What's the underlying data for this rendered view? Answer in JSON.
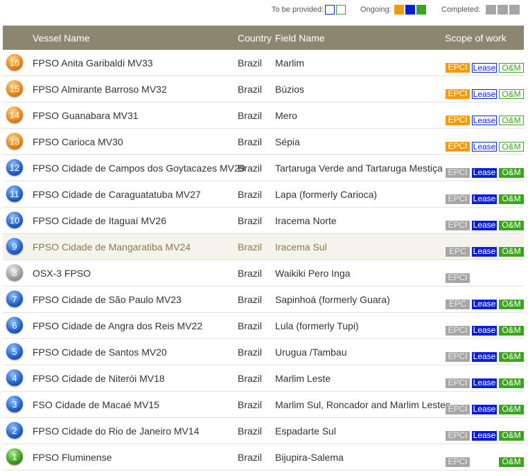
{
  "legend": {
    "to_be_provided": "To be provided:",
    "ongoing": "Ongoing:",
    "completed": "Completed:"
  },
  "table": {
    "headers": [
      "Vessel Name",
      "Country",
      "Field Name",
      "Scope of work"
    ],
    "rows": [
      {
        "number": "16",
        "icon": "orange",
        "vessel": "FPSO Anita Garibaldi MV33",
        "country": "Brazil",
        "field": "Marlim",
        "scope": {
          "epci": {
            "label": "EPCI",
            "status": "ongoing"
          },
          "lease": {
            "label": "Lease",
            "status": "to-be-provided"
          },
          "om": {
            "label": "O&M",
            "status": "to-be-provided"
          }
        }
      },
      {
        "number": "15",
        "icon": "orange",
        "vessel": "FPSO Almirante Barroso MV32",
        "country": "Brazil",
        "field": "Búzios",
        "scope": {
          "epci": {
            "label": "EPCI",
            "status": "ongoing"
          },
          "lease": {
            "label": "Lease",
            "status": "to-be-provided"
          },
          "om": {
            "label": "O&M",
            "status": "to-be-provided"
          }
        }
      },
      {
        "number": "14",
        "icon": "orange",
        "vessel": "FPSO Guanabara MV31",
        "country": "Brazil",
        "field": "Mero",
        "scope": {
          "epci": {
            "label": "EPCI",
            "status": "ongoing"
          },
          "lease": {
            "label": "Lease",
            "status": "to-be-provided"
          },
          "om": {
            "label": "O&M",
            "status": "to-be-provided"
          }
        }
      },
      {
        "number": "13",
        "icon": "orange",
        "vessel": "FPSO Carioca MV30",
        "country": "Brazil",
        "field": "Sépia",
        "scope": {
          "epci": {
            "label": "EPCI",
            "status": "ongoing"
          },
          "lease": {
            "label": "Lease",
            "status": "to-be-provided"
          },
          "om": {
            "label": "O&M",
            "status": "to-be-provided"
          }
        }
      },
      {
        "number": "12",
        "icon": "blue",
        "vessel": "FPSO Cidade de Campos dos Goytacazes MV29",
        "country": "Brazil",
        "field": "Tartaruga Verde and Tartaruga Mestiça",
        "scope": {
          "epci": {
            "label": "EPCI",
            "status": "completed"
          },
          "lease": {
            "label": "Lease",
            "status": "ongoing"
          },
          "om": {
            "label": "O&M",
            "status": "ongoing"
          }
        }
      },
      {
        "number": "11",
        "icon": "blue",
        "vessel": "FPSO Cidade de Caraguatatuba MV27",
        "country": "Brazil",
        "field": "Lapa (formerly Carioca)",
        "scope": {
          "epci": {
            "label": "EPCI",
            "status": "completed"
          },
          "lease": {
            "label": "Lease",
            "status": "ongoing"
          },
          "om": {
            "label": "O&M",
            "status": "ongoing"
          }
        }
      },
      {
        "number": "10",
        "icon": "blue",
        "vessel": "FPSO Cidade de Itaguaí MV26",
        "country": "Brazil",
        "field": "Iracema Norte",
        "scope": {
          "epci": {
            "label": "EPCI",
            "status": "completed"
          },
          "lease": {
            "label": "Lease",
            "status": "ongoing"
          },
          "om": {
            "label": "O&M",
            "status": "ongoing"
          }
        }
      },
      {
        "number": "9",
        "icon": "blue",
        "highlighted": true,
        "vessel": "FPSO Cidade de Mangaratiba MV24",
        "country": "Brazil",
        "field": "Iracema Sul",
        "scope": {
          "epci": {
            "label": "EPC",
            "status": "completed"
          },
          "lease": {
            "label": "Lease",
            "status": "ongoing"
          },
          "om": {
            "label": "O&M",
            "status": "ongoing"
          }
        }
      },
      {
        "number": "8",
        "icon": "gray",
        "vessel": "OSX-3 FPSO",
        "country": "Brazil",
        "field": "Waikiki Pero Inga",
        "scope": {
          "epci": {
            "label": "EPCI",
            "status": "completed"
          }
        }
      },
      {
        "number": "7",
        "icon": "blue",
        "vessel": "FPSO Cidade de São Paulo MV23",
        "country": "Brazil",
        "field": "Sapinhoá (formerly Guara)",
        "scope": {
          "epci": {
            "label": "EPC",
            "status": "completed"
          },
          "lease": {
            "label": "Lease",
            "status": "ongoing"
          },
          "om": {
            "label": "O&M",
            "status": "ongoing"
          }
        }
      },
      {
        "number": "6",
        "icon": "blue",
        "vessel": "FPSO Cidade de Angra dos Reis MV22",
        "country": "Brazil",
        "field": "Lula (formerly Tupi)",
        "scope": {
          "epci": {
            "label": "EPCI",
            "status": "completed"
          },
          "lease": {
            "label": "Lease",
            "status": "ongoing"
          },
          "om": {
            "label": "O&M",
            "status": "ongoing"
          }
        }
      },
      {
        "number": "5",
        "icon": "blue",
        "vessel": "FPSO Cidade de Santos MV20",
        "country": "Brazil",
        "field": "Urugua /Tambau",
        "scope": {
          "epci": {
            "label": "EPCI",
            "status": "completed"
          },
          "lease": {
            "label": "Lease",
            "status": "ongoing"
          },
          "om": {
            "label": "O&M",
            "status": "ongoing"
          }
        }
      },
      {
        "number": "4",
        "icon": "blue",
        "vessel": "FPSO Cidade de Niterói MV18",
        "country": "Brazil",
        "field": "Marlim Leste",
        "scope": {
          "epci": {
            "label": "EPCI",
            "status": "completed"
          },
          "lease": {
            "label": "Lease",
            "status": "ongoing"
          },
          "om": {
            "label": "O&M",
            "status": "ongoing"
          }
        }
      },
      {
        "number": "3",
        "icon": "blue",
        "vessel": "FSO Cidade de Macaé MV15",
        "country": "Brazil",
        "field": "Marlim Sul, Roncador and Marlim Lestes",
        "scope": {
          "epci": {
            "label": "EPCI",
            "status": "completed"
          },
          "lease": {
            "label": "Lease",
            "status": "ongoing"
          },
          "om": {
            "label": "O&M",
            "status": "ongoing"
          }
        }
      },
      {
        "number": "2",
        "icon": "blue",
        "vessel": "FPSO Cidade do Rio de Janeiro MV14",
        "country": "Brazil",
        "field": "Espadarte Sul",
        "scope": {
          "epci": {
            "label": "EPCI",
            "status": "completed"
          },
          "lease": {
            "label": "Lease",
            "status": "ongoing"
          },
          "om": {
            "label": "O&M",
            "status": "ongoing"
          }
        }
      },
      {
        "number": "1",
        "icon": "green",
        "vessel": "FPSO Fluminense",
        "country": "Brazil",
        "field": "Bijupira-Salema",
        "scope": {
          "epci": {
            "label": "EPCI",
            "status": "completed"
          },
          "om": {
            "label": "O&M",
            "status": "ongoing"
          }
        }
      }
    ]
  }
}
